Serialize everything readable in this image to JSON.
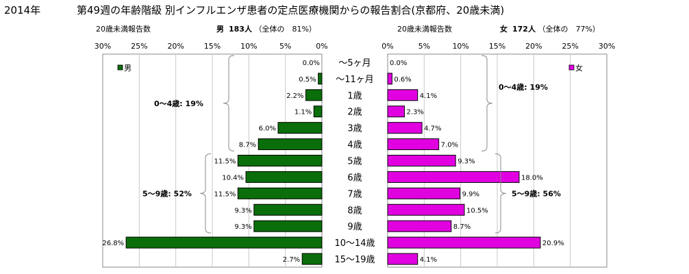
{
  "title": {
    "year": "2014年",
    "main": "第49週の年齢階級 別インフルエンザ患者の定点医療機関からの報告割合(京都府、20歳未満)"
  },
  "headers": {
    "male": {
      "count_label": "20歳未満報告数",
      "sex": "男",
      "count": "183人",
      "share": "（全体の　81%）"
    },
    "female": {
      "count_label": "20歳未満報告数",
      "sex": "女",
      "count": "172人",
      "share": "（全体の　77%）"
    }
  },
  "chart_data": {
    "type": "bar",
    "orientation": "horizontal",
    "unit": "%",
    "xlim": [
      0,
      30
    ],
    "ticks": [
      "30%",
      "25%",
      "20%",
      "15%",
      "10%",
      "5%",
      "0%"
    ],
    "ticks_right": [
      "0%",
      "5%",
      "10%",
      "15%",
      "20%",
      "25%",
      "30%"
    ],
    "categories": [
      "～5ヶ月",
      "～11ヶ月",
      "1歳",
      "2歳",
      "3歳",
      "4歳",
      "5歳",
      "6歳",
      "7歳",
      "8歳",
      "9歳",
      "10～14歳",
      "15～19歳"
    ],
    "series": [
      {
        "name": "男",
        "color": "#0a6e0a",
        "values": [
          0.0,
          0.5,
          2.2,
          1.1,
          6.0,
          8.7,
          11.5,
          10.4,
          11.5,
          9.3,
          9.3,
          26.8,
          2.7
        ],
        "labels": [
          "0.0%",
          "0.5%",
          "2.2%",
          "1.1%",
          "6.0%",
          "8.7%",
          "11.5%",
          "10.4%",
          "11.5%",
          "9.3%",
          "9.3%",
          "26.8%",
          "2.7%"
        ]
      },
      {
        "name": "女",
        "color": "#e000e0",
        "values": [
          0.0,
          0.6,
          4.1,
          2.3,
          4.7,
          7.0,
          9.3,
          18.0,
          9.9,
          10.5,
          8.7,
          20.9,
          4.1
        ],
        "labels": [
          "0.0%",
          "0.6%",
          "4.1%",
          "2.3%",
          "4.7%",
          "7.0%",
          "9.3%",
          "18.0%",
          "9.9%",
          "10.5%",
          "8.7%",
          "20.9%",
          "4.1%"
        ]
      }
    ],
    "annotations": {
      "male_0_4": "0～4歳: 19%",
      "male_5_9": "5～9歳: 52%",
      "female_0_4": "0～4歳: 19%",
      "female_5_9": "5～9歳: 56%"
    },
    "legend_placement": "top-left (male), top-right (female)",
    "grid": true
  }
}
